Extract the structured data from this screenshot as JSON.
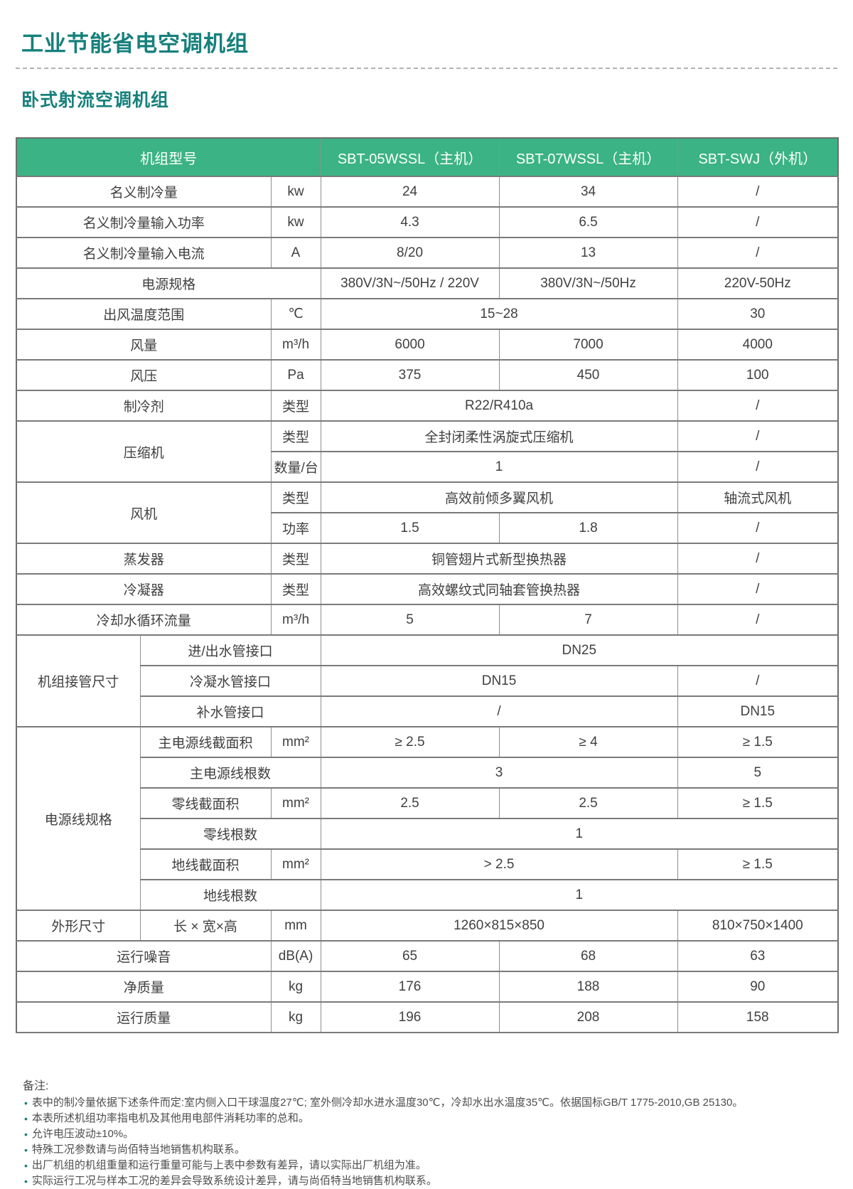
{
  "page": {
    "title": "工业节能省电空调机组",
    "subtitle": "卧式射流空调机组"
  },
  "colors": {
    "accent_teal": "#16807c",
    "header_green": "#3bb384",
    "body_text": "#404040",
    "border_gray": "#8f8f8f"
  },
  "table": {
    "header": [
      {
        "t": "机组型号",
        "c": 3
      },
      {
        "t": "SBT-05WSSL（主机）"
      },
      {
        "t": "SBT-07WSSL（主机）"
      },
      {
        "t": "SBT-SWJ（外机）"
      }
    ],
    "rows": [
      [
        {
          "t": "名义制冷量",
          "c": 2
        },
        {
          "t": "kw"
        },
        {
          "t": "24"
        },
        {
          "t": "34"
        },
        {
          "t": "/"
        }
      ],
      [
        {
          "t": "名义制冷量输入功率",
          "c": 2
        },
        {
          "t": "kw"
        },
        {
          "t": "4.3"
        },
        {
          "t": "6.5"
        },
        {
          "t": "/"
        }
      ],
      [
        {
          "t": "名义制冷量输入电流",
          "c": 2
        },
        {
          "t": "A"
        },
        {
          "t": "8/20"
        },
        {
          "t": "13"
        },
        {
          "t": "/"
        }
      ],
      [
        {
          "t": "电源规格",
          "c": 3
        },
        {
          "t": "380V/3N~/50Hz / 220V"
        },
        {
          "t": "380V/3N~/50Hz"
        },
        {
          "t": "220V-50Hz"
        }
      ],
      [
        {
          "t": "出风温度范围",
          "c": 2
        },
        {
          "t": "℃"
        },
        {
          "t": "15~28",
          "c": 2
        },
        {
          "t": "30"
        }
      ],
      [
        {
          "t": "风量",
          "c": 2
        },
        {
          "t": "m³/h"
        },
        {
          "t": "6000"
        },
        {
          "t": "7000"
        },
        {
          "t": "4000"
        }
      ],
      [
        {
          "t": "风压",
          "c": 2
        },
        {
          "t": "Pa"
        },
        {
          "t": "375"
        },
        {
          "t": "450"
        },
        {
          "t": "100"
        }
      ],
      [
        {
          "t": "制冷剂",
          "c": 2
        },
        {
          "t": "类型"
        },
        {
          "t": "R22/R410a",
          "c": 2
        },
        {
          "t": "/"
        }
      ],
      [
        {
          "t": "压缩机",
          "c": 2,
          "r": 2
        },
        {
          "t": "类型"
        },
        {
          "t": "全封闭柔性涡旋式压缩机",
          "c": 2
        },
        {
          "t": "/"
        }
      ],
      [
        {
          "t": "数量/台"
        },
        {
          "t": "1",
          "c": 2
        },
        {
          "t": "/"
        }
      ],
      [
        {
          "t": "风机",
          "c": 2,
          "r": 2
        },
        {
          "t": "类型"
        },
        {
          "t": "高效前倾多翼风机",
          "c": 2
        },
        {
          "t": "轴流式风机"
        }
      ],
      [
        {
          "t": "功率"
        },
        {
          "t": "1.5"
        },
        {
          "t": "1.8"
        },
        {
          "t": "/"
        }
      ],
      [
        {
          "t": "蒸发器",
          "c": 2
        },
        {
          "t": "类型"
        },
        {
          "t": "铜管翅片式新型换热器",
          "c": 2
        },
        {
          "t": "/"
        }
      ],
      [
        {
          "t": "冷凝器",
          "c": 2
        },
        {
          "t": "类型"
        },
        {
          "t": "高效螺纹式同轴套管换热器",
          "c": 2
        },
        {
          "t": "/"
        }
      ],
      [
        {
          "t": "冷却水循环流量",
          "c": 2
        },
        {
          "t": "m³/h"
        },
        {
          "t": "5"
        },
        {
          "t": "7"
        },
        {
          "t": "/"
        }
      ],
      [
        {
          "t": "机组接管尺寸",
          "r": 3
        },
        {
          "t": "进/出水管接口",
          "c": 2
        },
        {
          "t": "DN25",
          "c": 3
        }
      ],
      [
        {
          "t": "冷凝水管接口",
          "c": 2
        },
        {
          "t": "DN15",
          "c": 2
        },
        {
          "t": "/"
        }
      ],
      [
        {
          "t": "补水管接口",
          "c": 2
        },
        {
          "t": "/",
          "c": 2
        },
        {
          "t": "DN15"
        }
      ],
      [
        {
          "t": "电源线规格",
          "r": 6
        },
        {
          "t": "主电源线截面积"
        },
        {
          "t": "mm²"
        },
        {
          "t": "≥ 2.5"
        },
        {
          "t": "≥ 4"
        },
        {
          "t": "≥ 1.5"
        }
      ],
      [
        {
          "t": "主电源线根数",
          "c": 2
        },
        {
          "t": "3",
          "c": 2
        },
        {
          "t": "5"
        }
      ],
      [
        {
          "t": "零线截面积"
        },
        {
          "t": "mm²"
        },
        {
          "t": "2.5"
        },
        {
          "t": "2.5"
        },
        {
          "t": "≥ 1.5"
        }
      ],
      [
        {
          "t": "零线根数",
          "c": 2
        },
        {
          "t": "1",
          "c": 3
        }
      ],
      [
        {
          "t": "地线截面积"
        },
        {
          "t": "mm²"
        },
        {
          "t": "> 2.5",
          "c": 2
        },
        {
          "t": "≥ 1.5"
        }
      ],
      [
        {
          "t": "地线根数",
          "c": 2
        },
        {
          "t": "1",
          "c": 3
        }
      ],
      [
        {
          "t": "外形尺寸"
        },
        {
          "t": "长 × 宽×高"
        },
        {
          "t": "mm"
        },
        {
          "t": "1260×815×850",
          "c": 2
        },
        {
          "t": "810×750×1400"
        }
      ],
      [
        {
          "t": "运行噪音",
          "c": 2
        },
        {
          "t": "dB(A)"
        },
        {
          "t": "65"
        },
        {
          "t": "68"
        },
        {
          "t": "63"
        }
      ],
      [
        {
          "t": "净质量",
          "c": 2
        },
        {
          "t": "kg"
        },
        {
          "t": "176"
        },
        {
          "t": "188"
        },
        {
          "t": "90"
        }
      ],
      [
        {
          "t": "运行质量",
          "c": 2
        },
        {
          "t": "kg"
        },
        {
          "t": "196"
        },
        {
          "t": "208"
        },
        {
          "t": "158"
        }
      ]
    ]
  },
  "notes": {
    "label": "备注:",
    "bullet": "•",
    "items": [
      "表中的制冷量依据下述条件而定:室内侧入口干球温度27℃; 室外侧冷却水进水温度30℃，冷却水出水温度35℃。依据国标GB/T 1775-2010,GB 25130。",
      "本表所述机组功率指电机及其他用电部件消耗功率的总和。",
      "允许电压波动±10%。",
      "特殊工况参数请与尚佰特当地销售机构联系。",
      "出厂机组的机组重量和运行重量可能与上表中参数有差异，请以实际出厂机组为准。",
      "实际运行工况与样本工况的差异会导致系统设计差异，请与尚佰特当地销售机构联系。"
    ]
  }
}
